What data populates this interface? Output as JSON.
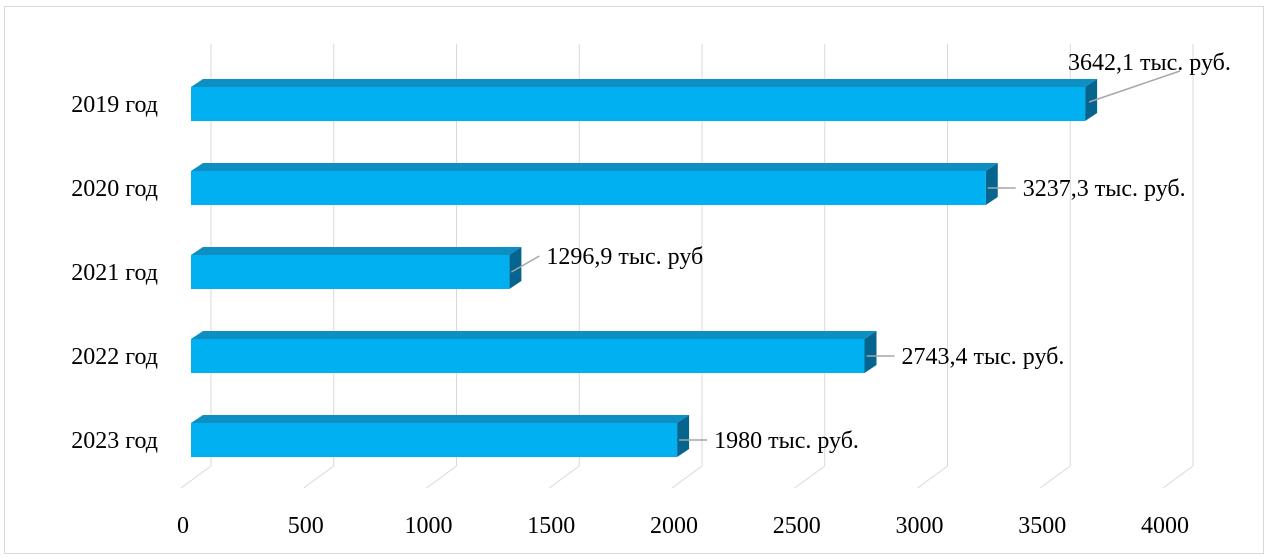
{
  "chart_data": {
    "type": "bar",
    "orientation": "horizontal",
    "style": "3d",
    "categories": [
      "2019 год",
      "2020 год",
      "2021 год",
      "2022 год",
      "2023 год"
    ],
    "values": [
      3642.1,
      3237.3,
      1296.9,
      2743.4,
      1980
    ],
    "data_labels": [
      "3642,1 тыс. руб.",
      "3237,3 тыс. руб.",
      "1296,9 тыс. руб",
      "2743,4 тыс. руб.",
      "1980 тыс. руб."
    ],
    "x_ticks": [
      "0",
      "500",
      "1000",
      "1500",
      "2000",
      "2500",
      "3000",
      "3500",
      "4000"
    ],
    "xlim": [
      0,
      4000
    ],
    "grid": true,
    "legend": "none",
    "colors": {
      "bar_front": "#00b0f0",
      "bar_top": "#0e8fc4",
      "bar_side": "#06658e",
      "grid": "#d9d9d9",
      "leader": "#a6a6a6"
    }
  }
}
